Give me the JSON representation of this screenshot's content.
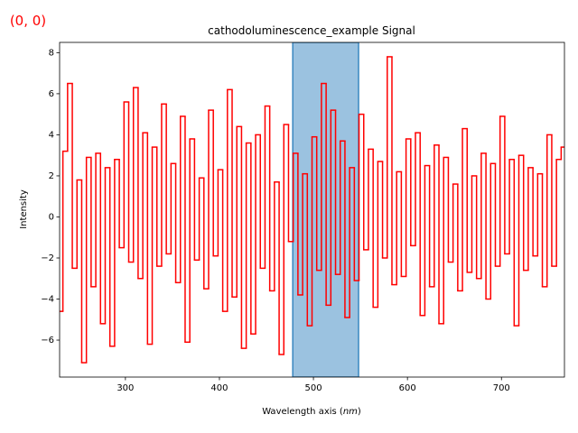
{
  "chart_data": {
    "type": "step",
    "title": "cathodoluminescence_example Signal",
    "annotation": "(0, 0)",
    "xlabel": {
      "text": "Wavelength axis (",
      "unit": "nm",
      "close": ")"
    },
    "ylabel": "Intensity",
    "color": "#ff0000",
    "span": [
      478,
      548
    ],
    "span_color": "#9bc2e0",
    "span_edge": "#3a87c0",
    "xlim": [
      230,
      767
    ],
    "ylim": [
      -7.8,
      8.5
    ],
    "xticks": [
      300,
      400,
      500,
      600,
      700
    ],
    "yticks": [
      {
        "value": -6,
        "label": "−6"
      },
      {
        "value": -4,
        "label": "−4"
      },
      {
        "value": -2,
        "label": "−2"
      },
      0,
      2,
      4,
      6,
      8
    ],
    "x": [
      231,
      236,
      241,
      246,
      251,
      256,
      261,
      266,
      271,
      276,
      281,
      286,
      291,
      296,
      301,
      306,
      311,
      316,
      321,
      326,
      331,
      336,
      341,
      346,
      351,
      356,
      361,
      366,
      371,
      376,
      381,
      386,
      391,
      396,
      401,
      406,
      411,
      416,
      421,
      426,
      431,
      436,
      441,
      446,
      451,
      456,
      461,
      466,
      471,
      476,
      481,
      486,
      491,
      496,
      501,
      506,
      511,
      516,
      521,
      526,
      531,
      536,
      541,
      546,
      551,
      556,
      561,
      566,
      571,
      576,
      581,
      586,
      591,
      596,
      601,
      606,
      611,
      616,
      621,
      626,
      631,
      636,
      641,
      646,
      651,
      656,
      661,
      666,
      671,
      676,
      681,
      686,
      691,
      696,
      701,
      706,
      711,
      716,
      721,
      726,
      731,
      736,
      741,
      746,
      751,
      756,
      761,
      766
    ],
    "values": [
      -4.6,
      3.2,
      6.5,
      -2.5,
      1.8,
      -7.1,
      2.9,
      -3.4,
      3.1,
      -5.2,
      2.4,
      -6.3,
      2.8,
      -1.5,
      5.6,
      -2.2,
      6.3,
      -3.0,
      4.1,
      -6.2,
      3.4,
      -2.4,
      5.5,
      -1.8,
      2.6,
      -3.2,
      4.9,
      -6.1,
      3.8,
      -2.1,
      1.9,
      -3.5,
      5.2,
      -1.9,
      2.3,
      -4.6,
      6.2,
      -3.9,
      4.4,
      -6.4,
      3.6,
      -5.7,
      4.0,
      -2.5,
      5.4,
      -3.6,
      1.7,
      -6.7,
      4.5,
      -1.2,
      3.1,
      -3.8,
      2.1,
      -5.3,
      3.9,
      -2.6,
      6.5,
      -4.3,
      5.2,
      -2.8,
      3.7,
      -4.9,
      2.4,
      -3.1,
      5.0,
      -1.6,
      3.3,
      -4.4,
      2.7,
      -2.0,
      7.8,
      -3.3,
      2.2,
      -2.9,
      3.8,
      -1.4,
      4.1,
      -4.8,
      2.5,
      -3.4,
      3.5,
      -5.2,
      2.9,
      -2.2,
      1.6,
      -3.6,
      4.3,
      -2.7,
      2.0,
      -3.0,
      3.1,
      -4.0,
      2.6,
      -2.4,
      4.9,
      -1.8,
      2.8,
      -5.3,
      3.0,
      -2.6,
      2.4,
      -1.9,
      2.1,
      -3.4,
      4.0,
      -2.4,
      2.8,
      3.4
    ]
  }
}
